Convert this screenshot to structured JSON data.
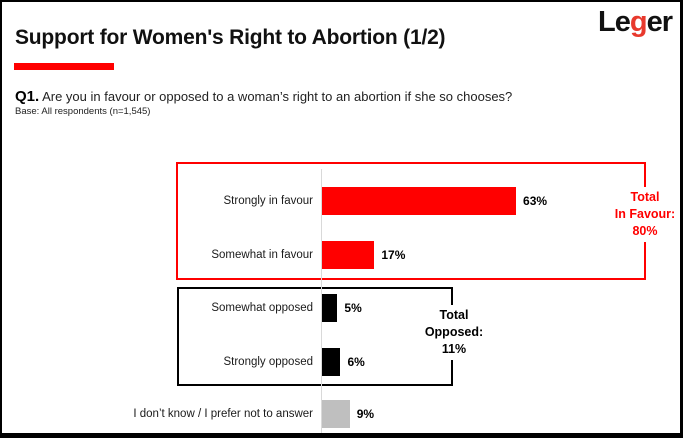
{
  "slide": {
    "title": "Support for Women's Right to Abortion (1/2)",
    "logo": {
      "pre": "Le",
      "accent_letter": "g",
      "post": "er"
    }
  },
  "question": {
    "number": "Q1.",
    "text": " Are you in favour or opposed to a woman’s right to an abortion if she so chooses?",
    "base": "Base: All respondents (n=1,545)"
  },
  "chart_data": {
    "type": "bar",
    "orientation": "horizontal",
    "title": "",
    "xlabel": "",
    "ylabel": "",
    "xlim": [
      0,
      100
    ],
    "grid": false,
    "categories": [
      "Strongly in favour",
      "Somewhat in favour",
      "Somewhat opposed",
      "Strongly opposed",
      "I don’t know / I prefer not to answer"
    ],
    "values": [
      63,
      17,
      5,
      6,
      9
    ],
    "value_labels": [
      "63%",
      "17%",
      "5%",
      "6%",
      "9%"
    ],
    "bar_colors": [
      "#ff0000",
      "#ff0000",
      "#000000",
      "#000000",
      "#bfbfbf"
    ],
    "groups": [
      {
        "name": "total_in_favour",
        "label_lines": [
          "Total",
          "In Favour:",
          "80%"
        ],
        "total": 80,
        "members": [
          "Strongly in favour",
          "Somewhat in favour"
        ],
        "color": "#ff0000"
      },
      {
        "name": "total_opposed",
        "label_lines": [
          "Total",
          "Opposed:",
          "11%"
        ],
        "total": 11,
        "members": [
          "Somewhat opposed",
          "Strongly opposed"
        ],
        "color": "#000000"
      }
    ]
  },
  "colors": {
    "accent_red": "#ff0000",
    "logo_red": "#e8392d",
    "bar_gray": "#bfbfbf",
    "axis_gray": "#d9d9d9"
  }
}
